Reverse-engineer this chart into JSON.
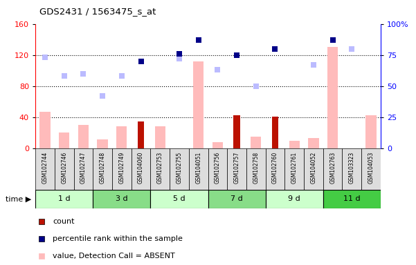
{
  "title": "GDS2431 / 1563475_s_at",
  "samples": [
    "GSM102744",
    "GSM102746",
    "GSM102747",
    "GSM102748",
    "GSM102749",
    "GSM104060",
    "GSM102753",
    "GSM102755",
    "GSM104051",
    "GSM102756",
    "GSM102757",
    "GSM102758",
    "GSM102760",
    "GSM102761",
    "GSM104052",
    "GSM102763",
    "GSM103323",
    "GSM104053"
  ],
  "time_groups": [
    {
      "label": "1 d",
      "start": 0,
      "end": 3,
      "color": "#ccffcc"
    },
    {
      "label": "3 d",
      "start": 3,
      "end": 6,
      "color": "#88dd88"
    },
    {
      "label": "5 d",
      "start": 6,
      "end": 9,
      "color": "#ccffcc"
    },
    {
      "label": "7 d",
      "start": 9,
      "end": 12,
      "color": "#88dd88"
    },
    {
      "label": "9 d",
      "start": 12,
      "end": 15,
      "color": "#ccffcc"
    },
    {
      "label": "11 d",
      "start": 15,
      "end": 18,
      "color": "#44cc44"
    }
  ],
  "count_values": [
    0,
    0,
    0,
    0,
    0,
    35,
    0,
    0,
    0,
    0,
    43,
    0,
    41,
    0,
    0,
    0,
    0,
    0
  ],
  "pct_rank_values": [
    null,
    null,
    null,
    null,
    null,
    70,
    null,
    76,
    87,
    null,
    75,
    null,
    80,
    null,
    null,
    87,
    null,
    null
  ],
  "value_absent": [
    47,
    20,
    30,
    12,
    28,
    0,
    28,
    0,
    112,
    8,
    0,
    15,
    0,
    10,
    13,
    130,
    0,
    43
  ],
  "rank_absent": [
    73,
    58,
    60,
    42,
    58,
    null,
    null,
    72,
    null,
    63,
    null,
    50,
    null,
    null,
    67,
    null,
    80,
    null
  ],
  "left_ylim": [
    0,
    160
  ],
  "left_yticks": [
    0,
    40,
    80,
    120,
    160
  ],
  "right_yticks": [
    0,
    25,
    50,
    75,
    100
  ],
  "right_yticklabels": [
    "0",
    "25",
    "50",
    "75",
    "100%"
  ],
  "grid_lines": [
    40,
    80,
    120
  ],
  "count_color": "#bb1100",
  "pct_rank_color": "#000088",
  "value_absent_color": "#ffbbbb",
  "rank_absent_color": "#bbbbff",
  "plot_bg_color": "#ffffff"
}
